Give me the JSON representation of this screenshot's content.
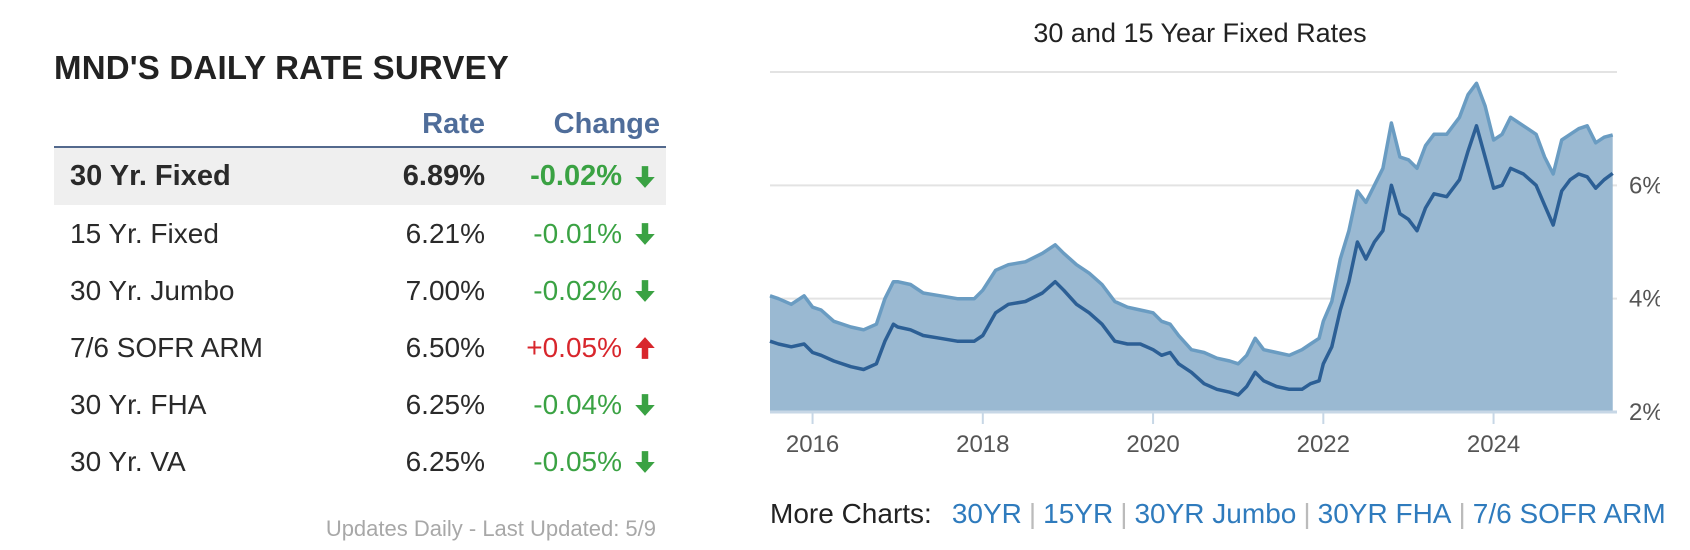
{
  "survey": {
    "title_prefix": "MND'S",
    "title_bold": "DAILY RATE SURVEY",
    "col_rate": "Rate",
    "col_change": "Change",
    "rows": [
      {
        "name": "30 Yr. Fixed",
        "rate": "6.89%",
        "change": "-0.02%",
        "direction": "down"
      },
      {
        "name": "15 Yr. Fixed",
        "rate": "6.21%",
        "change": "-0.01%",
        "direction": "down"
      },
      {
        "name": "30 Yr. Jumbo",
        "rate": "7.00%",
        "change": "-0.02%",
        "direction": "down"
      },
      {
        "name": "7/6 SOFR ARM",
        "rate": "6.50%",
        "change": "+0.05%",
        "direction": "up"
      },
      {
        "name": "30 Yr. FHA",
        "rate": "6.25%",
        "change": "-0.04%",
        "direction": "down"
      },
      {
        "name": "30 Yr. VA",
        "rate": "6.25%",
        "change": "-0.05%",
        "direction": "down"
      }
    ],
    "updated": "Updates Daily - Last Updated: 5/9"
  },
  "colors": {
    "down": "#3aa243",
    "up": "#d8262c",
    "header": "#4f6d9a",
    "link": "#2f7bbd",
    "area_fill": "#9ab9d2",
    "line_30": "#6a9cc2",
    "line_15": "#2c5f95"
  },
  "icons": {
    "down": "arrow-down-icon",
    "up": "arrow-up-icon"
  },
  "more_charts": {
    "label": "More Charts:",
    "links": [
      "30YR",
      "15YR",
      "30YR Jumbo",
      "30YR FHA",
      "7/6 SOFR ARM"
    ]
  },
  "chart_data": {
    "type": "area",
    "title": "30 and 15 Year Fixed Rates",
    "x_ticks": [
      "2016",
      "2018",
      "2020",
      "2022",
      "2024"
    ],
    "y_ticks": [
      "2%",
      "4%",
      "6%"
    ],
    "xlim": [
      2015.5,
      2025.45
    ],
    "ylim": [
      2.0,
      8.0
    ],
    "grid": true,
    "series": [
      {
        "x": [
          2015.5,
          2015.6,
          2015.75,
          2015.9,
          2016.0,
          2016.1,
          2016.25,
          2016.45,
          2016.6,
          2016.75,
          2016.85,
          2016.95,
          2017.0,
          2017.15,
          2017.3,
          2017.5,
          2017.7,
          2017.9,
          2018.0,
          2018.15,
          2018.3,
          2018.5,
          2018.7,
          2018.85,
          2018.95,
          2019.1,
          2019.25,
          2019.4,
          2019.55,
          2019.7,
          2019.85,
          2020.0,
          2020.1,
          2020.2,
          2020.3,
          2020.45,
          2020.6,
          2020.75,
          2020.9,
          2021.0,
          2021.1,
          2021.2,
          2021.3,
          2021.45,
          2021.6,
          2021.75,
          2021.85,
          2021.95,
          2022.0,
          2022.1,
          2022.2,
          2022.3,
          2022.4,
          2022.5,
          2022.6,
          2022.7,
          2022.8,
          2022.9,
          2023.0,
          2023.1,
          2023.2,
          2023.3,
          2023.45,
          2023.6,
          2023.7,
          2023.8,
          2023.9,
          2024.0,
          2024.1,
          2024.2,
          2024.35,
          2024.5,
          2024.6,
          2024.7,
          2024.8,
          2024.9,
          2025.0,
          2025.1,
          2025.2,
          2025.3,
          2025.4
        ],
        "values": [
          4.05,
          4.0,
          3.9,
          4.05,
          3.85,
          3.8,
          3.6,
          3.5,
          3.45,
          3.55,
          4.0,
          4.3,
          4.3,
          4.25,
          4.1,
          4.05,
          4.0,
          4.0,
          4.15,
          4.5,
          4.6,
          4.65,
          4.8,
          4.95,
          4.8,
          4.6,
          4.45,
          4.25,
          3.95,
          3.85,
          3.8,
          3.75,
          3.6,
          3.55,
          3.35,
          3.1,
          3.05,
          2.95,
          2.9,
          2.85,
          3.0,
          3.3,
          3.1,
          3.05,
          3.0,
          3.1,
          3.2,
          3.3,
          3.6,
          3.95,
          4.7,
          5.2,
          5.9,
          5.7,
          6.0,
          6.3,
          7.1,
          6.5,
          6.45,
          6.3,
          6.7,
          6.9,
          6.9,
          7.2,
          7.6,
          7.8,
          7.4,
          6.8,
          6.9,
          7.2,
          7.05,
          6.9,
          6.5,
          6.2,
          6.8,
          6.9,
          7.0,
          7.05,
          6.75,
          6.85,
          6.89
        ]
      },
      {
        "x": [
          2015.5,
          2015.6,
          2015.75,
          2015.9,
          2016.0,
          2016.1,
          2016.25,
          2016.45,
          2016.6,
          2016.75,
          2016.85,
          2016.95,
          2017.0,
          2017.15,
          2017.3,
          2017.5,
          2017.7,
          2017.9,
          2018.0,
          2018.15,
          2018.3,
          2018.5,
          2018.7,
          2018.85,
          2018.95,
          2019.1,
          2019.25,
          2019.4,
          2019.55,
          2019.7,
          2019.85,
          2020.0,
          2020.1,
          2020.2,
          2020.3,
          2020.45,
          2020.6,
          2020.75,
          2020.9,
          2021.0,
          2021.1,
          2021.2,
          2021.3,
          2021.45,
          2021.6,
          2021.75,
          2021.85,
          2021.95,
          2022.0,
          2022.1,
          2022.2,
          2022.3,
          2022.4,
          2022.5,
          2022.6,
          2022.7,
          2022.8,
          2022.9,
          2023.0,
          2023.1,
          2023.2,
          2023.3,
          2023.45,
          2023.6,
          2023.7,
          2023.8,
          2023.9,
          2024.0,
          2024.1,
          2024.2,
          2024.35,
          2024.5,
          2024.6,
          2024.7,
          2024.8,
          2024.9,
          2025.0,
          2025.1,
          2025.2,
          2025.3,
          2025.4
        ],
        "values": [
          3.25,
          3.2,
          3.15,
          3.2,
          3.05,
          3.0,
          2.9,
          2.8,
          2.75,
          2.85,
          3.25,
          3.55,
          3.5,
          3.45,
          3.35,
          3.3,
          3.25,
          3.25,
          3.35,
          3.75,
          3.9,
          3.95,
          4.1,
          4.3,
          4.15,
          3.9,
          3.75,
          3.55,
          3.25,
          3.2,
          3.2,
          3.1,
          3.0,
          3.05,
          2.85,
          2.7,
          2.5,
          2.4,
          2.35,
          2.3,
          2.45,
          2.7,
          2.55,
          2.45,
          2.4,
          2.4,
          2.5,
          2.55,
          2.85,
          3.15,
          3.8,
          4.3,
          5.0,
          4.7,
          5.0,
          5.2,
          6.0,
          5.5,
          5.4,
          5.2,
          5.6,
          5.85,
          5.8,
          6.1,
          6.6,
          7.05,
          6.5,
          5.95,
          6.0,
          6.3,
          6.2,
          6.0,
          5.65,
          5.3,
          5.9,
          6.1,
          6.2,
          6.15,
          5.95,
          6.1,
          6.21
        ]
      }
    ]
  }
}
